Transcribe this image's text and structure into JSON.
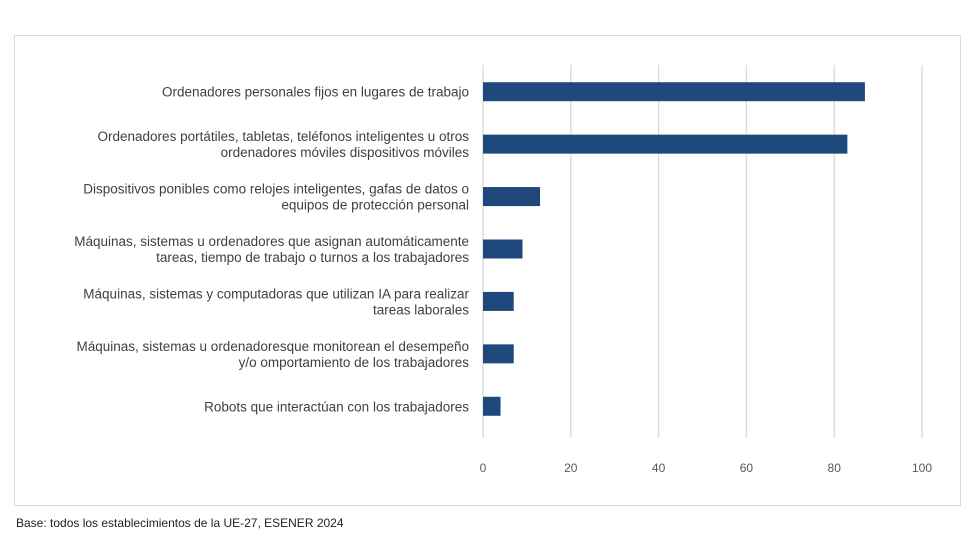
{
  "chart_data": {
    "type": "bar",
    "orientation": "horizontal",
    "categories": [
      [
        "Ordenadores personales fijos en lugares de trabajo"
      ],
      [
        "Ordenadores portátiles, tabletas, teléfonos inteligentes u otros",
        "ordenadores móviles dispositivos móviles"
      ],
      [
        "Dispositivos ponibles como relojes inteligentes, gafas de datos o",
        "equipos de protección personal"
      ],
      [
        "Máquinas, sistemas u ordenadores que asignan automáticamente",
        "tareas, tiempo de trabajo o turnos a los trabajadores"
      ],
      [
        "Máquinas, sistemas y computadoras que utilizan IA para realizar",
        "tareas laborales"
      ],
      [
        "Máquinas, sistemas u ordenadoresque monitorean el desempeño",
        "y/o  omportamiento  de  los  trabajadores"
      ],
      [
        "Robots que interactúan con los trabajadores"
      ]
    ],
    "values": [
      87,
      83,
      13,
      9,
      7,
      7,
      4
    ],
    "xlim": [
      0,
      100
    ],
    "xticks": [
      0,
      20,
      40,
      60,
      80,
      100
    ],
    "grid": "vertical",
    "bar_color": "#1f497d"
  },
  "footnote": "Base: todos los establecimientos de la UE-27, ESENER 2024"
}
